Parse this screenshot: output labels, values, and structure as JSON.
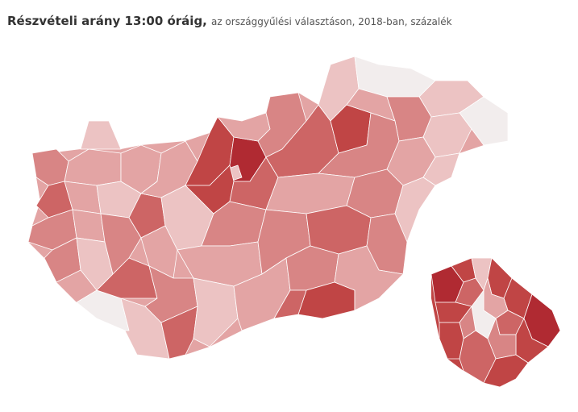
{
  "header": {
    "title": "Részvételi arány 13:00 óráig,",
    "subtitle": "az országgyűlési választáson, 2018-ban, százalék"
  },
  "map": {
    "region": "Magyarország",
    "inset": "Budapest",
    "colors": {
      "lightest": "#f2eded",
      "light": "#ecc3c3",
      "medium_light": "#e3a4a4",
      "medium": "#d88585",
      "medium_dark": "#cd6565",
      "dark": "#c04545",
      "darkest": "#b02a32"
    }
  }
}
